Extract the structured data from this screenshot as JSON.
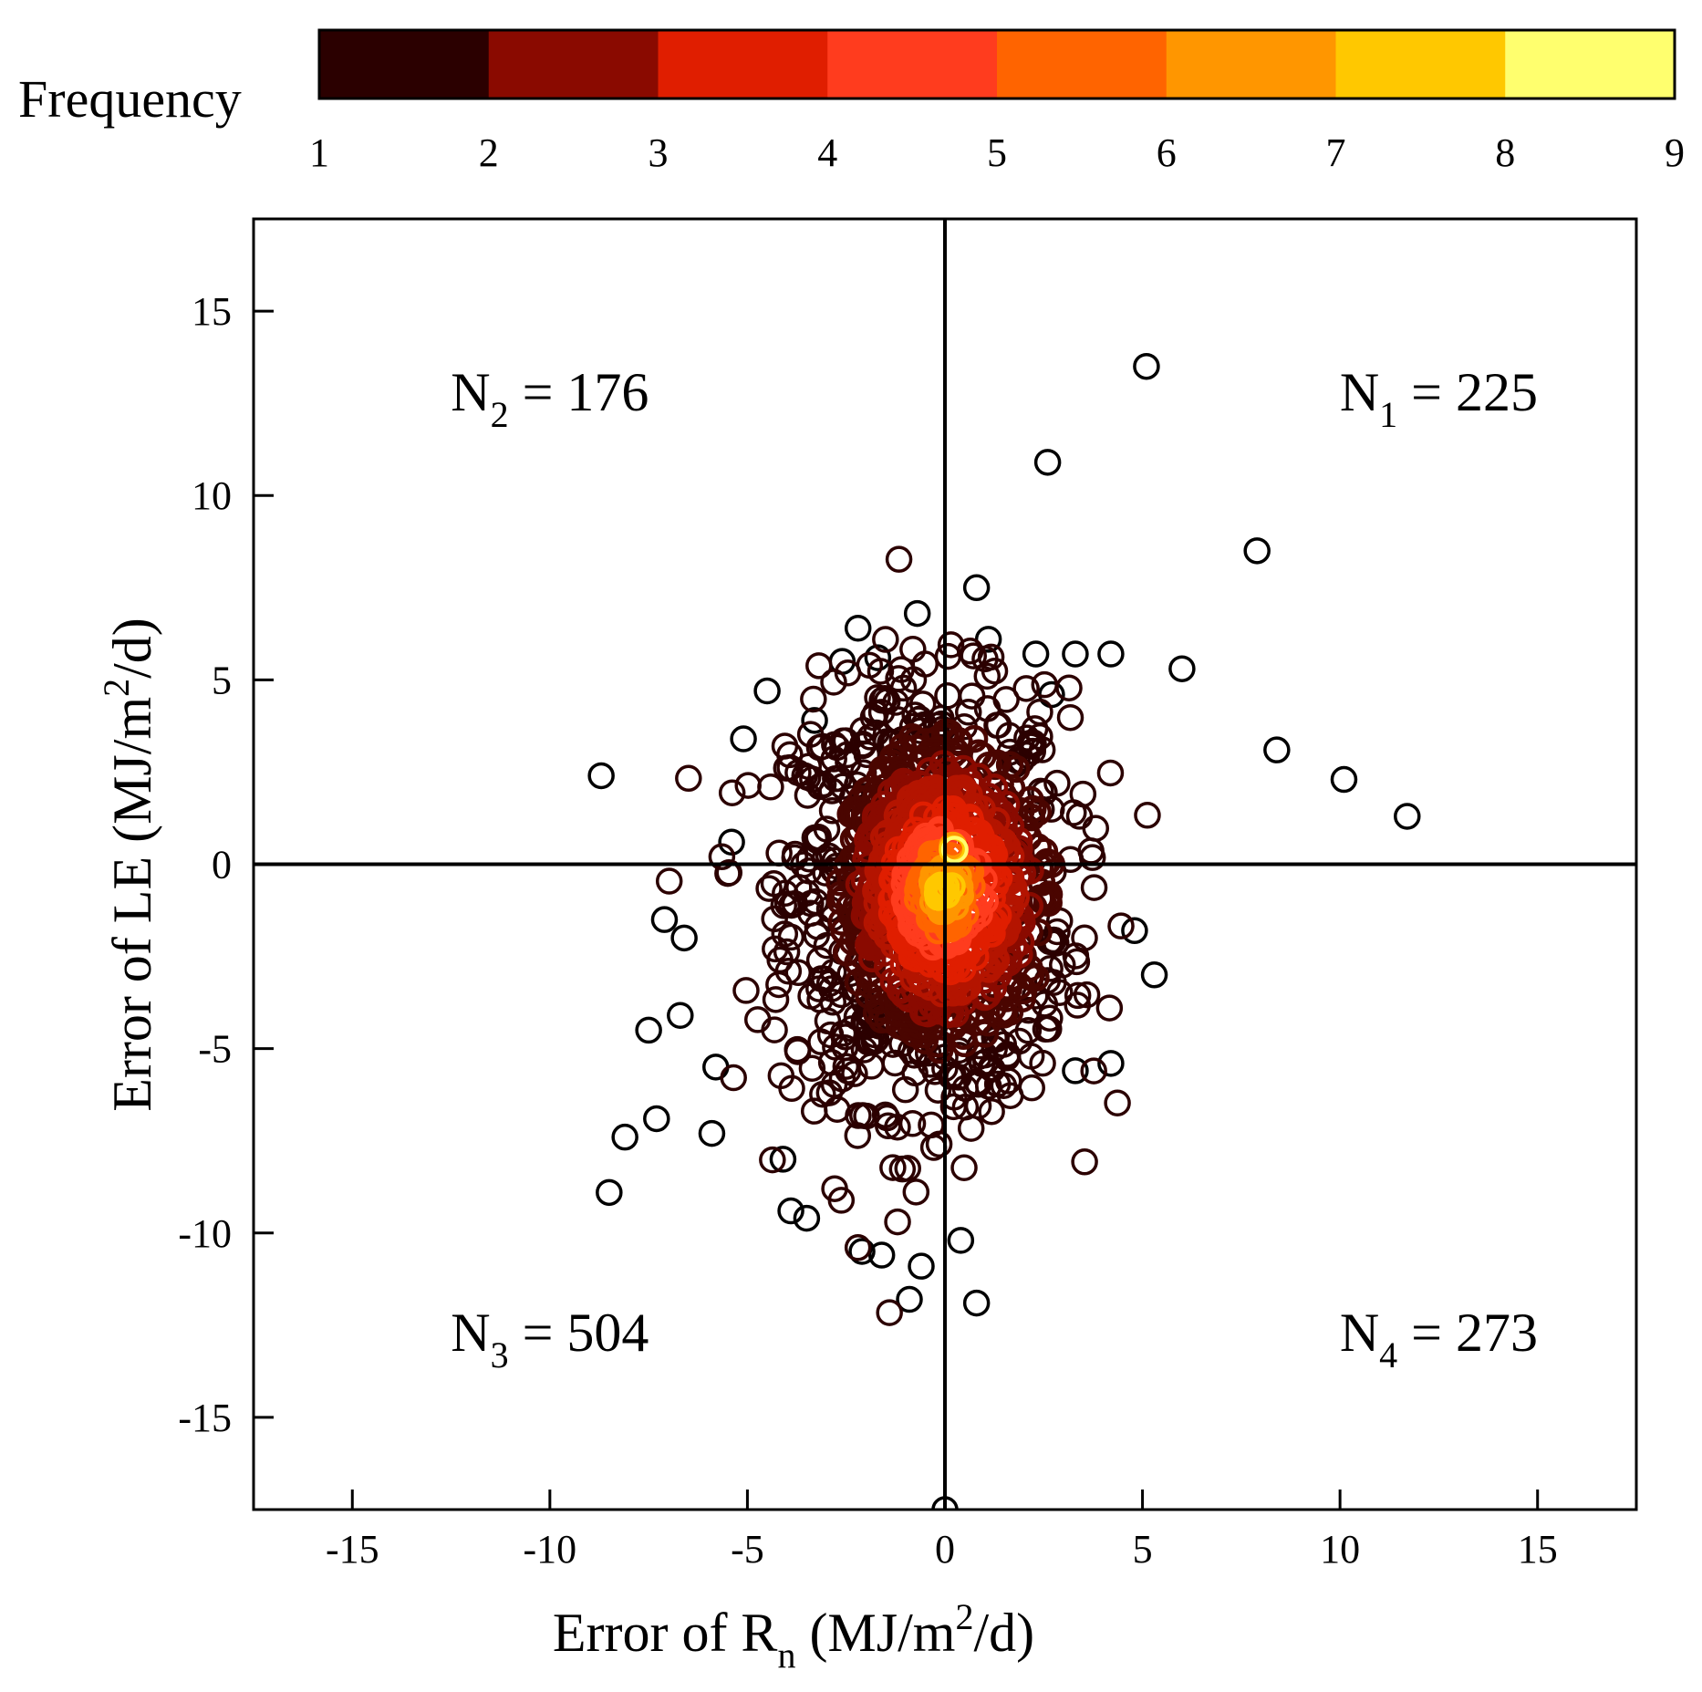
{
  "chart_data": {
    "type": "scatter",
    "title": "",
    "xlabel": {
      "main": "Error of R",
      "sub": "n",
      "unit_open": " (MJ/m",
      "sup": "2",
      "unit_close": "/d)"
    },
    "ylabel": {
      "main": "Error of LE (MJ/m",
      "sup": "2",
      "unit_close": "/d)"
    },
    "xlim": [
      -17.5,
      17.5
    ],
    "ylim": [
      -17.5,
      17.5
    ],
    "xticks": [
      -15,
      -10,
      -5,
      0,
      5,
      10,
      15
    ],
    "yticks": [
      -15,
      -10,
      -5,
      0,
      5,
      10,
      15
    ],
    "xtick_labels": [
      "-15",
      "-10",
      "-5",
      "0",
      "5",
      "10",
      "15"
    ],
    "ytick_labels": [
      "-15",
      "-10",
      "-5",
      "0",
      "5",
      "10",
      "15"
    ],
    "reference_lines": {
      "x": 0,
      "y": 0
    },
    "quadrant_labels": [
      {
        "quadrant": "top-right",
        "prefix": "N",
        "sub": "1",
        "text": " = 225"
      },
      {
        "quadrant": "top-left",
        "prefix": "N",
        "sub": "2",
        "text": " = 176"
      },
      {
        "quadrant": "bottom-left",
        "prefix": "N",
        "sub": "3",
        "text": " = 504"
      },
      {
        "quadrant": "bottom-right",
        "prefix": "N",
        "sub": "4",
        "text": " = 273"
      }
    ],
    "colorbar": {
      "title": "Frequency",
      "placement": "top",
      "tick_labels": [
        "1",
        "2",
        "3",
        "4",
        "5",
        "6",
        "7",
        "8",
        "9"
      ],
      "colors": [
        "#2b0000",
        "#8a0a00",
        "#e01e00",
        "#ff3c1e",
        "#ff6400",
        "#ff9600",
        "#ffc800",
        "#ffff6e"
      ]
    },
    "marker": "open-circle",
    "outlier_points": [
      {
        "x": 5.1,
        "y": 13.5
      },
      {
        "x": 2.6,
        "y": 10.9
      },
      {
        "x": 7.9,
        "y": 8.5
      },
      {
        "x": 0.8,
        "y": 7.5
      },
      {
        "x": -0.7,
        "y": 6.8
      },
      {
        "x": -2.2,
        "y": 6.4
      },
      {
        "x": 1.1,
        "y": 6.1
      },
      {
        "x": 4.2,
        "y": 5.7
      },
      {
        "x": 6.0,
        "y": 5.3
      },
      {
        "x": -8.7,
        "y": 2.4
      },
      {
        "x": -5.1,
        "y": 3.4
      },
      {
        "x": -4.5,
        "y": 4.7
      },
      {
        "x": -3.3,
        "y": 3.9
      },
      {
        "x": 8.4,
        "y": 3.1
      },
      {
        "x": 10.1,
        "y": 2.3
      },
      {
        "x": 11.7,
        "y": 1.3
      },
      {
        "x": -5.4,
        "y": 0.6
      },
      {
        "x": -7.1,
        "y": -1.5
      },
      {
        "x": -6.6,
        "y": -2.0
      },
      {
        "x": 5.3,
        "y": -3.0
      },
      {
        "x": 4.8,
        "y": -1.8
      },
      {
        "x": -7.5,
        "y": -4.5
      },
      {
        "x": -6.7,
        "y": -4.1
      },
      {
        "x": -5.8,
        "y": -5.5
      },
      {
        "x": 4.2,
        "y": -5.4
      },
      {
        "x": 3.3,
        "y": -5.6
      },
      {
        "x": -7.3,
        "y": -6.9
      },
      {
        "x": -8.1,
        "y": -7.4
      },
      {
        "x": -5.9,
        "y": -7.3
      },
      {
        "x": -8.5,
        "y": -8.9
      },
      {
        "x": -4.1,
        "y": -8.0
      },
      {
        "x": -3.9,
        "y": -9.4
      },
      {
        "x": -3.5,
        "y": -9.6
      },
      {
        "x": -2.1,
        "y": -10.5
      },
      {
        "x": -1.6,
        "y": -10.6
      },
      {
        "x": -0.6,
        "y": -10.9
      },
      {
        "x": -0.9,
        "y": -11.8
      },
      {
        "x": 0.8,
        "y": -11.9
      },
      {
        "x": 0.4,
        "y": -10.2
      },
      {
        "x": 0.0,
        "y": -17.5
      },
      {
        "x": -1.7,
        "y": 5.6
      },
      {
        "x": -2.6,
        "y": 5.5
      },
      {
        "x": 2.3,
        "y": 5.7
      },
      {
        "x": 3.3,
        "y": 5.7
      },
      {
        "x": 2.7,
        "y": 4.6
      }
    ]
  }
}
